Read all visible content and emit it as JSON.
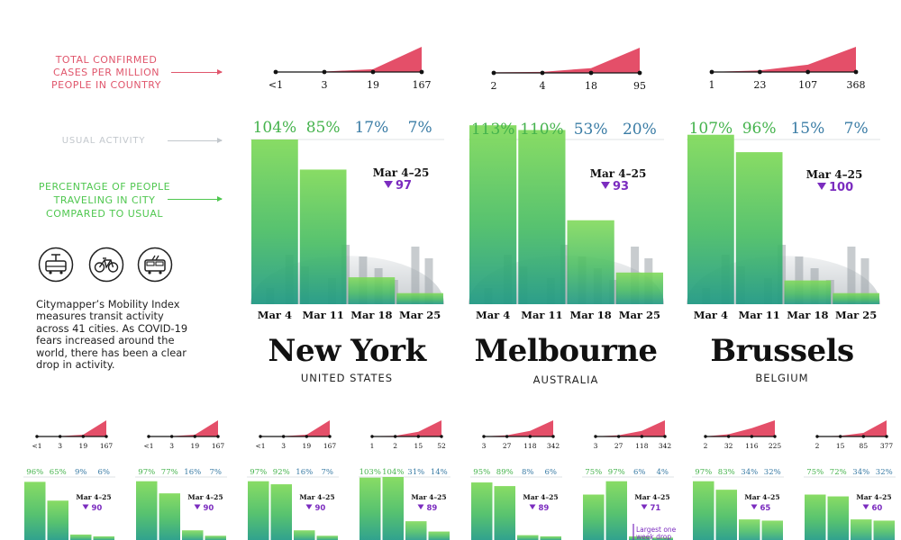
{
  "legends": {
    "cases": [
      "TOTAL CONFIRMED",
      "CASES PER MILLION",
      "PEOPLE IN COUNTRY"
    ],
    "usual": "USUAL ACTIVITY",
    "pct": [
      "PERCENTAGE OF PEOPLE",
      "TRAVELING IN CITY",
      "COMPARED TO USUAL"
    ]
  },
  "icons": [
    "tram-icon",
    "bicycle-icon",
    "bus-icon"
  ],
  "blurb": "Citymapper’s Mobility Index measures transit activity across 41 cities. As COVID-19 fears increased around the world, there has been a clear drop in activity.",
  "colors": {
    "cases": "#e44f69",
    "bar_top": "#7ed957",
    "bar_bottom": "#1f9a84",
    "drop": "#7b2cbf",
    "pct_green": "#45b34d",
    "pct_blue": "#3a7ca5",
    "city_text": "#111111"
  },
  "chart_data": [
    {
      "type": "bar",
      "city": "New York",
      "country": "UNITED STATES",
      "categories": [
        "Mar 4",
        "Mar 11",
        "Mar 18",
        "Mar 25"
      ],
      "values": [
        104,
        85,
        17,
        7
      ],
      "value_labels": [
        "104%",
        "85%",
        "17%",
        "7%"
      ],
      "drop_label": "Mar 4–25",
      "drop_value": "97",
      "cases": {
        "ticks": [
          "<1",
          "3",
          "19",
          "167"
        ],
        "values": [
          0.5,
          3,
          19,
          167
        ]
      }
    },
    {
      "type": "bar",
      "city": "Melbourne",
      "country": "AUSTRALIA",
      "categories": [
        "Mar 4",
        "Mar 11",
        "Mar 18",
        "Mar 25"
      ],
      "values": [
        113,
        110,
        53,
        20
      ],
      "value_labels": [
        "113%",
        "110%",
        "53%",
        "20%"
      ],
      "drop_label": "Mar 4–25",
      "drop_value": "93",
      "cases": {
        "ticks": [
          "2",
          "4",
          "18",
          "95"
        ],
        "values": [
          2,
          4,
          18,
          95
        ]
      }
    },
    {
      "type": "bar",
      "city": "Brussels",
      "country": "BELGIUM",
      "categories": [
        "Mar 4",
        "Mar 11",
        "Mar 18",
        "Mar 25"
      ],
      "values": [
        107,
        96,
        15,
        7
      ],
      "value_labels": [
        "107%",
        "96%",
        "15%",
        "7%"
      ],
      "drop_label": "Mar 4–25",
      "drop_value": "100",
      "cases": {
        "ticks": [
          "1",
          "23",
          "107",
          "368"
        ],
        "values": [
          1,
          23,
          107,
          368
        ]
      }
    },
    {
      "type": "bar",
      "values": [
        96,
        65,
        9,
        6
      ],
      "value_labels": [
        "96%",
        "65%",
        "9%",
        "6%"
      ],
      "drop_label": "Mar 4–25",
      "drop_value": "90",
      "cases": {
        "ticks": [
          "<1",
          "3",
          "19",
          "167"
        ],
        "values": [
          0.5,
          3,
          19,
          167
        ]
      }
    },
    {
      "type": "bar",
      "values": [
        97,
        77,
        16,
        7
      ],
      "value_labels": [
        "97%",
        "77%",
        "16%",
        "7%"
      ],
      "drop_label": "Mar 4–25",
      "drop_value": "90",
      "cases": {
        "ticks": [
          "<1",
          "3",
          "19",
          "167"
        ],
        "values": [
          0.5,
          3,
          19,
          167
        ]
      }
    },
    {
      "type": "bar",
      "values": [
        97,
        92,
        16,
        7
      ],
      "value_labels": [
        "97%",
        "92%",
        "16%",
        "7%"
      ],
      "drop_label": "Mar 4–25",
      "drop_value": "90",
      "cases": {
        "ticks": [
          "<1",
          "3",
          "19",
          "167"
        ],
        "values": [
          0.5,
          3,
          19,
          167
        ]
      }
    },
    {
      "type": "bar",
      "values": [
        103,
        104,
        31,
        14
      ],
      "value_labels": [
        "103%",
        "104%",
        "31%",
        "14%"
      ],
      "drop_label": "Mar 4–25",
      "drop_value": "89",
      "cases": {
        "ticks": [
          "1",
          "2",
          "15",
          "52"
        ],
        "values": [
          1,
          2,
          15,
          52
        ]
      }
    },
    {
      "type": "bar",
      "values": [
        95,
        89,
        8,
        6
      ],
      "value_labels": [
        "95%",
        "89%",
        "8%",
        "6%"
      ],
      "drop_label": "Mar 4–25",
      "drop_value": "89",
      "cases": {
        "ticks": [
          "3",
          "27",
          "118",
          "342"
        ],
        "values": [
          3,
          27,
          118,
          342
        ]
      }
    },
    {
      "type": "bar",
      "values": [
        75,
        97,
        6,
        4
      ],
      "value_labels": [
        "75%",
        "97%",
        "6%",
        "4%"
      ],
      "drop_label": "Mar 4–25",
      "drop_value": "71",
      "note": [
        "Largest one",
        "week drop"
      ],
      "cases": {
        "ticks": [
          "3",
          "27",
          "118",
          "342"
        ],
        "values": [
          3,
          27,
          118,
          342
        ]
      }
    },
    {
      "type": "bar",
      "values": [
        97,
        83,
        34,
        32
      ],
      "value_labels": [
        "97%",
        "83%",
        "34%",
        "32%"
      ],
      "drop_label": "Mar 4–25",
      "drop_value": "65",
      "cases": {
        "ticks": [
          "2",
          "32",
          "116",
          "225"
        ],
        "values": [
          2,
          32,
          116,
          225
        ]
      }
    },
    {
      "type": "bar",
      "values": [
        75,
        72,
        34,
        32
      ],
      "value_labels": [
        "75%",
        "72%",
        "34%",
        "32%"
      ],
      "drop_label": "Mar 4–25",
      "drop_value": "60",
      "cases": {
        "ticks": [
          "2",
          "15",
          "85",
          "377"
        ],
        "values": [
          2,
          15,
          85,
          377
        ]
      }
    }
  ]
}
